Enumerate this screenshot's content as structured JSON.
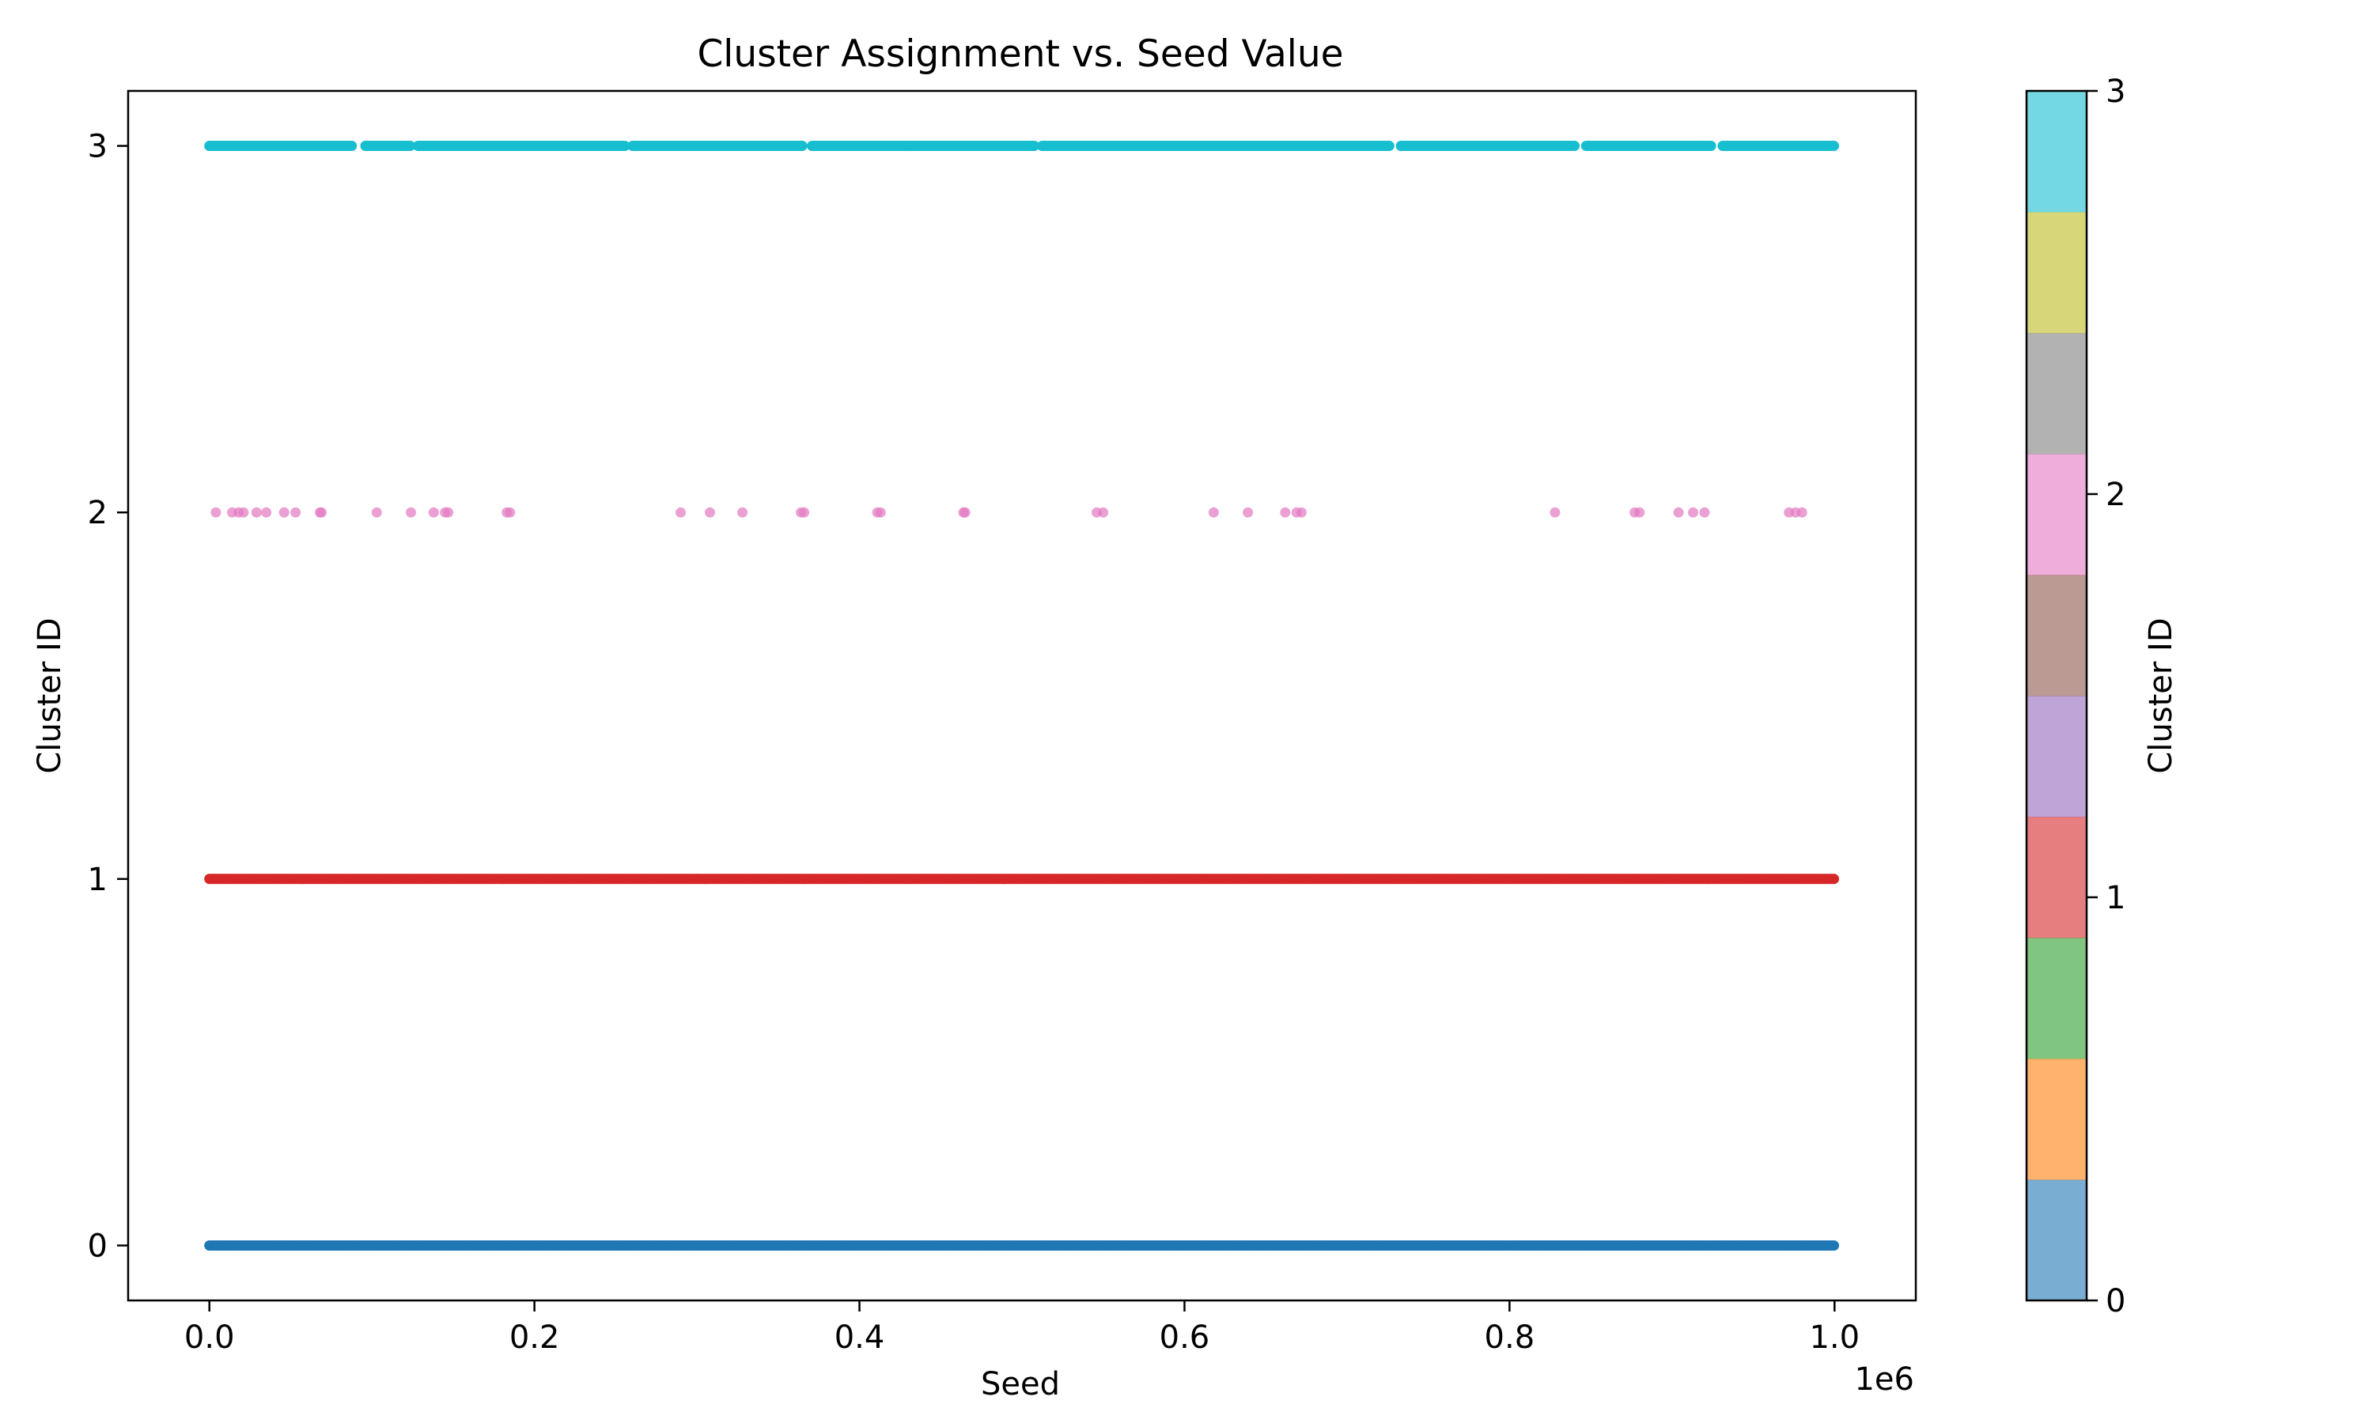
{
  "chart_data": {
    "type": "scatter",
    "title": "Cluster Assignment vs. Seed Value",
    "xlabel": "Seed",
    "ylabel": "Cluster ID",
    "x_offset_text": "1e6",
    "xlim": [
      -0.05,
      1.05
    ],
    "ylim": [
      -0.15,
      3.15
    ],
    "x_ticks": [
      0.0,
      0.2,
      0.4,
      0.6,
      0.8,
      1.0
    ],
    "x_tick_labels": [
      "0.0",
      "0.2",
      "0.4",
      "0.6",
      "0.8",
      "1.0"
    ],
    "y_ticks": [
      0,
      1,
      2,
      3
    ],
    "y_tick_labels": [
      "0",
      "1",
      "2",
      "3"
    ],
    "grid": false,
    "series": [
      {
        "cluster": 0,
        "color": "#1f77b4",
        "y": 0,
        "x_range": [
          0.0,
          1.0
        ],
        "density": "continuous"
      },
      {
        "cluster": 1,
        "color": "#d62728",
        "y": 1,
        "x_range": [
          0.0,
          1.0
        ],
        "density": "continuous"
      },
      {
        "cluster": 2,
        "color": "#e377c2",
        "y": 2,
        "x": [
          0.004,
          0.014,
          0.018,
          0.021,
          0.029,
          0.035,
          0.046,
          0.053,
          0.068,
          0.069,
          0.103,
          0.124,
          0.138,
          0.145,
          0.147,
          0.183,
          0.185,
          0.29,
          0.308,
          0.328,
          0.364,
          0.366,
          0.411,
          0.413,
          0.464,
          0.465,
          0.546,
          0.55,
          0.618,
          0.639,
          0.662,
          0.669,
          0.672,
          0.828,
          0.877,
          0.88,
          0.904,
          0.913,
          0.92,
          0.972,
          0.976,
          0.98
        ]
      },
      {
        "cluster": 3,
        "color": "#17becf",
        "y": 3,
        "x_range": [
          0.0,
          1.0
        ],
        "gaps": [
          [
            0.088,
            0.095
          ],
          [
            0.124,
            0.128
          ],
          [
            0.256,
            0.26
          ],
          [
            0.365,
            0.37
          ],
          [
            0.508,
            0.512
          ],
          [
            0.727,
            0.732
          ],
          [
            0.84,
            0.846
          ],
          [
            0.925,
            0.93
          ]
        ]
      }
    ],
    "colorbar": {
      "label": "Cluster ID",
      "range": [
        0,
        3
      ],
      "ticks": [
        0,
        1,
        2,
        3
      ],
      "tick_labels": [
        "0",
        "1",
        "2",
        "3"
      ],
      "colors": [
        "#1f77b4",
        "#ff7f0e",
        "#2ca02c",
        "#d62728",
        "#9467bd",
        "#8c564b",
        "#e377c2",
        "#7f7f7f",
        "#bcbd22",
        "#17becf"
      ],
      "alpha": 0.6
    }
  }
}
